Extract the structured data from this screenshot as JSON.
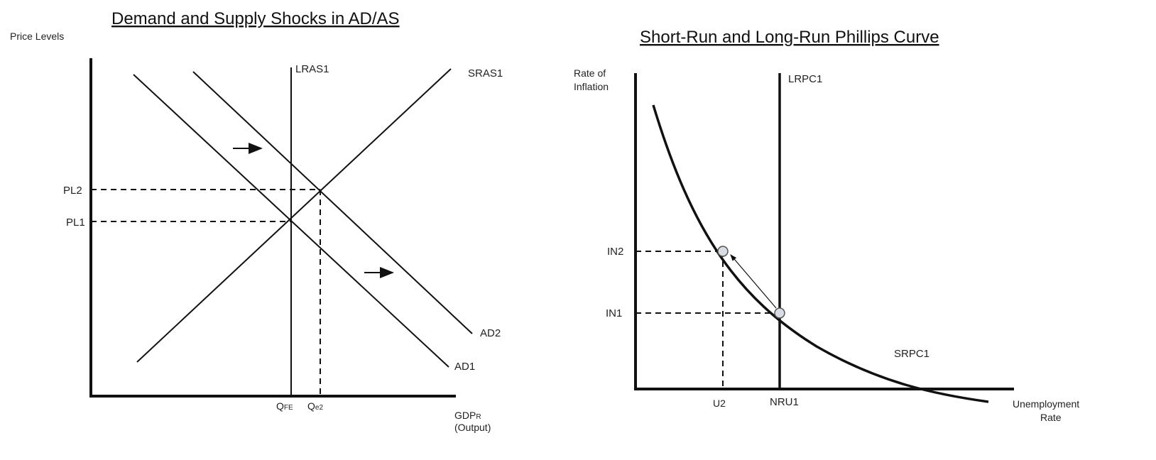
{
  "left_chart": {
    "title": "Demand and Supply Shocks in AD/AS",
    "y_axis_label": "Price Levels",
    "x_axis_label": {
      "main": "GDP",
      "sub": "R",
      "note": "(Output)"
    },
    "curves": {
      "lras": "LRAS1",
      "sras": "SRAS1",
      "ad1": "AD1",
      "ad2": "AD2"
    },
    "y_ticks": {
      "pl2": "PL2",
      "pl1": "PL1"
    },
    "x_ticks": {
      "qfe_main": "Q",
      "qfe_sub": "FE",
      "qe2_main": "Q",
      "qe2_sub": "e2"
    }
  },
  "right_chart": {
    "title": "Short-Run and Long-Run Phillips Curve",
    "y_axis_label": [
      "Rate of",
      "Inflation"
    ],
    "x_axis_label": [
      "Unemployment",
      "Rate"
    ],
    "curves": {
      "lrpc": "LRPC1",
      "srpc": "SRPC1"
    },
    "y_ticks": {
      "in2": "IN2",
      "in1": "IN1"
    },
    "x_ticks": {
      "u2": "U2",
      "nru1": "NRU1"
    }
  }
}
